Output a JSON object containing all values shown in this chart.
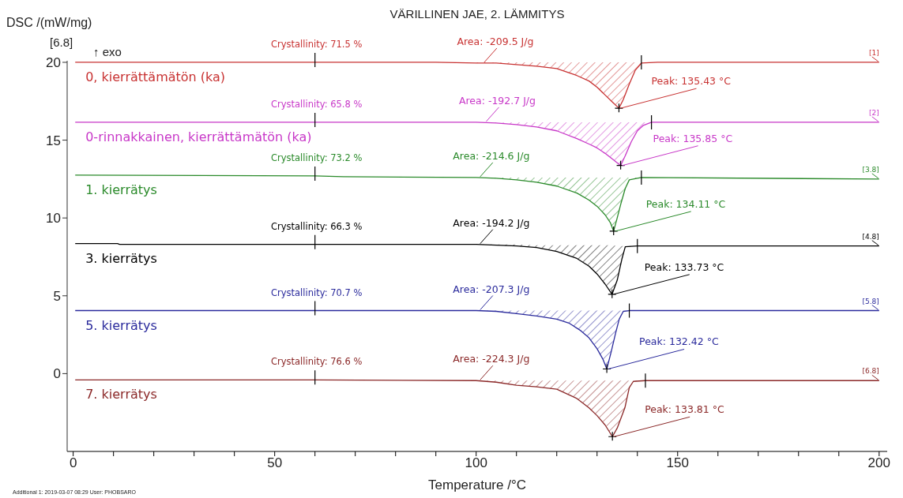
{
  "chart_data": {
    "type": "line",
    "title": "VÄRILLINEN JAE, 2. LÄMMITYS",
    "xlabel": "Temperature /°C",
    "ylabel": "DSC /(mW/mg)",
    "marker": "none",
    "xlim": [
      -1.5,
      202
    ],
    "ylim": [
      -5,
      20.1
    ],
    "xticks": [
      0,
      {
        "value": 10,
        "label": null
      },
      {
        "value": 20,
        "label": null
      },
      {
        "value": 30,
        "label": null
      },
      {
        "value": 40,
        "label": null
      },
      50,
      {
        "value": 60,
        "label": null
      },
      {
        "value": 70,
        "label": null
      },
      {
        "value": 80,
        "label": null
      },
      {
        "value": 90,
        "label": null
      },
      100,
      {
        "value": 110,
        "label": null
      },
      {
        "value": 120,
        "label": null
      },
      {
        "value": 130,
        "label": null
      },
      {
        "value": 140,
        "label": null
      },
      150,
      {
        "value": 160,
        "label": null
      },
      {
        "value": 170,
        "label": null
      },
      {
        "value": 180,
        "label": null
      },
      {
        "value": 190,
        "label": null
      },
      200
    ],
    "yticks": [
      0,
      5,
      10,
      15,
      20
    ],
    "series": [
      {
        "name": "0, kierrättämätön (ka)",
        "color": "#c83232",
        "x": [
          0.5,
          60,
          90,
          100,
          105,
          110,
          115,
          120,
          125,
          128,
          130,
          132,
          134,
          135.43,
          136.5,
          138,
          139.5,
          141,
          145,
          200
        ],
        "values": [
          20.0,
          20.0,
          20.0,
          19.95,
          19.95,
          19.85,
          19.75,
          19.6,
          19.15,
          18.8,
          18.4,
          17.9,
          17.4,
          17.05,
          17.6,
          18.6,
          19.5,
          19.95,
          20.0,
          20.0
        ],
        "lower": [
          null,
          null,
          null,
          19.95,
          19.95,
          19.85,
          19.75,
          19.6,
          19.15,
          18.8,
          18.4,
          17.9,
          17.4,
          17.05,
          17.6,
          18.6,
          19.5,
          19.95,
          null,
          null
        ],
        "upper": [
          null,
          null,
          null,
          20.0,
          20.0,
          20.0,
          20.0,
          20.0,
          20.0,
          20.0,
          20.0,
          20.0,
          20.0,
          20.0,
          20.0,
          20.0,
          20.0,
          20.0,
          null,
          null
        ]
      },
      {
        "name": "0-rinnakkainen, kierrättämätön (ka)",
        "color": "#c838c8",
        "x": [
          0.5,
          60,
          100,
          105,
          110,
          115,
          120,
          125,
          128,
          130,
          132,
          134,
          135.85,
          137,
          138.5,
          140,
          141.5,
          143.5,
          200
        ],
        "values": [
          16.15,
          16.15,
          16.15,
          16.1,
          16.0,
          15.85,
          15.6,
          15.1,
          14.75,
          14.5,
          14.15,
          13.75,
          13.37,
          14.0,
          14.9,
          15.6,
          15.95,
          16.15,
          16.15
        ],
        "lower": [
          null,
          null,
          16.15,
          16.1,
          16.0,
          15.85,
          15.6,
          15.1,
          14.75,
          14.5,
          14.15,
          13.75,
          13.37,
          14.0,
          14.9,
          15.6,
          15.95,
          16.15,
          null
        ],
        "upper": [
          null,
          null,
          16.15,
          16.15,
          16.15,
          16.15,
          16.15,
          16.15,
          16.15,
          16.15,
          16.15,
          16.15,
          16.15,
          16.15,
          16.15,
          16.15,
          16.15,
          16.15,
          null
        ]
      },
      {
        "name": "1. kierrätys",
        "color": "#2a8a2a",
        "x": [
          0.5,
          60,
          67,
          100,
          105,
          110,
          115,
          120,
          125,
          128,
          130,
          132,
          133.3,
          134.11,
          135,
          136,
          137,
          138,
          141,
          200
        ],
        "values": [
          12.75,
          12.7,
          12.65,
          12.6,
          12.55,
          12.45,
          12.3,
          12.05,
          11.6,
          11.15,
          10.75,
          10.2,
          9.7,
          9.15,
          10.0,
          11.0,
          11.9,
          12.45,
          12.6,
          12.5
        ],
        "lower": [
          null,
          null,
          null,
          12.6,
          12.55,
          12.45,
          12.3,
          12.05,
          11.6,
          11.15,
          10.75,
          10.2,
          9.7,
          9.15,
          10.0,
          11.0,
          11.9,
          12.45,
          12.6,
          null
        ],
        "upper": [
          null,
          null,
          null,
          12.6,
          12.6,
          12.6,
          12.6,
          12.6,
          12.6,
          12.6,
          12.6,
          12.6,
          12.6,
          12.6,
          12.6,
          12.6,
          12.6,
          12.6,
          12.6,
          null
        ]
      },
      {
        "name": "3. kierrätys",
        "color": "#000000",
        "x": [
          0.5,
          11,
          11.5,
          60,
          100,
          105,
          110,
          115,
          120,
          125,
          128,
          130,
          132,
          133.73,
          135,
          136.2,
          137,
          140,
          200
        ],
        "values": [
          8.35,
          8.35,
          8.3,
          8.3,
          8.3,
          8.25,
          8.2,
          8.1,
          7.85,
          7.4,
          6.9,
          6.4,
          5.75,
          5.1,
          6.0,
          7.4,
          8.15,
          8.2,
          8.2
        ],
        "lower": [
          null,
          null,
          null,
          null,
          8.3,
          8.25,
          8.2,
          8.1,
          7.85,
          7.4,
          6.9,
          6.4,
          5.75,
          5.1,
          6.0,
          7.4,
          8.15,
          8.2,
          null
        ],
        "upper": [
          null,
          null,
          null,
          null,
          8.3,
          8.3,
          8.3,
          8.25,
          8.25,
          8.25,
          8.25,
          8.25,
          8.25,
          8.25,
          8.2,
          8.2,
          8.2,
          8.2,
          null
        ]
      },
      {
        "name": "5. kierrätys",
        "color": "#2a2a9c",
        "x": [
          0.5,
          60,
          100,
          105,
          110,
          115,
          120,
          123,
          126,
          128,
          130,
          131.5,
          132.42,
          133.5,
          134.6,
          135.5,
          136.5,
          138,
          200
        ],
        "values": [
          4.05,
          4.05,
          4.05,
          4.0,
          3.85,
          3.7,
          3.5,
          3.25,
          2.75,
          2.3,
          1.6,
          0.9,
          0.3,
          1.4,
          2.6,
          3.5,
          4.0,
          4.05,
          4.05
        ],
        "lower": [
          null,
          null,
          4.05,
          4.0,
          3.85,
          3.7,
          3.5,
          3.25,
          2.75,
          2.3,
          1.6,
          0.9,
          0.3,
          1.4,
          2.6,
          3.5,
          4.0,
          4.05,
          null
        ],
        "upper": [
          null,
          null,
          4.05,
          4.05,
          4.05,
          4.05,
          4.05,
          4.05,
          4.05,
          4.05,
          4.05,
          4.05,
          4.05,
          4.05,
          4.05,
          4.05,
          4.05,
          4.05,
          null
        ]
      },
      {
        "name": "7. kierrätys",
        "color": "#8b2828",
        "x": [
          0.5,
          60,
          100,
          105,
          110,
          115,
          120,
          125,
          128,
          130,
          132,
          133.81,
          135,
          136.9,
          138,
          139,
          142,
          200
        ],
        "values": [
          -0.4,
          -0.4,
          -0.45,
          -0.55,
          -0.75,
          -0.85,
          -1.0,
          -1.6,
          -2.2,
          -2.7,
          -3.3,
          -4.05,
          -3.5,
          -2.2,
          -0.9,
          -0.5,
          -0.45,
          -0.45
        ],
        "lower": [
          null,
          null,
          -0.45,
          -0.55,
          -0.75,
          -0.85,
          -1.0,
          -1.6,
          -2.2,
          -2.7,
          -3.3,
          -4.05,
          -3.5,
          -2.2,
          -0.9,
          -0.5,
          -0.45,
          null
        ],
        "upper": [
          null,
          null,
          -0.45,
          -0.45,
          -0.45,
          -0.45,
          -0.45,
          -0.45,
          -0.45,
          -0.45,
          -0.45,
          -0.45,
          -0.45,
          -0.45,
          -0.45,
          -0.45,
          -0.45,
          null
        ]
      }
    ],
    "annotations": [
      "[6.8]",
      "↑ exo",
      {
        "text": "Crystallinity: 71.5 %",
        "x": 60,
        "y": 20.0
      },
      {
        "text": "Area: -209.5 J/g",
        "x": 102,
        "y": 19.95
      },
      {
        "text": "Peak: 135.43 °C",
        "x": 135.43,
        "y": 17.05
      },
      {
        "text": "[1]",
        "x": 200,
        "y": 20.0
      },
      {
        "text": "Crystallinity: 65.8 %",
        "x": 60,
        "y": 16.15
      },
      {
        "text": "Area: -192.7 J/g",
        "x": 102.5,
        "y": 16.15
      },
      {
        "text": "Peak: 135.85 °C",
        "x": 135.85,
        "y": 13.37
      },
      {
        "text": "[2]",
        "x": 200,
        "y": 16.15
      },
      {
        "text": "Crystallinity: 73.2 %",
        "x": 60,
        "y": 12.7
      },
      {
        "text": "Area: -214.6 J/g",
        "x": 101,
        "y": 12.6
      },
      {
        "text": "Peak: 134.11 °C",
        "x": 134.11,
        "y": 9.15
      },
      {
        "text": "[3.8]",
        "x": 200,
        "y": 12.5
      },
      {
        "text": "Crystallinity: 66.3 %",
        "x": 60,
        "y": 8.3
      },
      {
        "text": "Area: -194.2 J/g",
        "x": 101,
        "y": 8.3
      },
      {
        "text": "Peak: 133.73 °C",
        "x": 133.73,
        "y": 5.1
      },
      {
        "text": "[4.8]",
        "x": 200,
        "y": 8.2
      },
      {
        "text": "Crystallinity: 70.7 %",
        "x": 60,
        "y": 4.05
      },
      {
        "text": "Area: -207.3 J/g",
        "x": 101,
        "y": 4.05
      },
      {
        "text": "Peak: 132.42 °C",
        "x": 132.42,
        "y": 0.3
      },
      {
        "text": "[5.8]",
        "x": 200,
        "y": 4.05
      },
      {
        "text": "Crystallinity: 76.6 %",
        "x": 60,
        "y": -0.4
      },
      {
        "text": "Area: -224.3 J/g",
        "x": 101,
        "y": -0.45
      },
      {
        "text": "Peak: 133.81 °C",
        "x": 133.81,
        "y": -4.05
      },
      {
        "text": "[6.8]",
        "x": 200,
        "y": -0.45
      },
      "Additional 1: 2019-03-07 08:29 User: PHOBSARO"
    ]
  }
}
